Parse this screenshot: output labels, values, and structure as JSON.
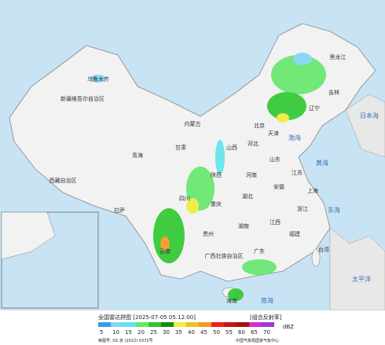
{
  "header": {
    "title": "全国雷达拼图 [2025-07-05 05:12:00]",
    "product": "[组合反射率]",
    "unit": "dBZ",
    "approval": "审图号: GS 京 (2022) 0372号",
    "agency": "中国气象局国家气象中心"
  },
  "legend": [
    {
      "value": 5,
      "color": "#3d9be8"
    },
    {
      "value": 10,
      "color": "#7fd6f2"
    },
    {
      "value": 15,
      "color": "#5fe3ee"
    },
    {
      "value": 20,
      "color": "#64e86a"
    },
    {
      "value": 25,
      "color": "#2dc82d"
    },
    {
      "value": 30,
      "color": "#168a16"
    },
    {
      "value": 35,
      "color": "#f0ec3c"
    },
    {
      "value": 40,
      "color": "#e6c21e"
    },
    {
      "value": 45,
      "color": "#f29a1e"
    },
    {
      "value": 50,
      "color": "#f01e1e"
    },
    {
      "value": 55,
      "color": "#c81414"
    },
    {
      "value": 60,
      "color": "#a01414"
    },
    {
      "value": 65,
      "color": "#d82ad8"
    },
    {
      "value": 70,
      "color": "#9a3ad8"
    }
  ],
  "labels": [
    "新疆维吾尔自治区",
    "西藏自治区",
    "青海",
    "内蒙古",
    "黑龙江",
    "吉林",
    "辽宁",
    "北京",
    "天津",
    "河北",
    "山西",
    "山东",
    "河南",
    "陕西",
    "甘肃",
    "四川",
    "重庆",
    "湖北",
    "安徽",
    "江苏",
    "上海",
    "浙江",
    "江西",
    "湖南",
    "贵州",
    "云南",
    "广西壮族自治区",
    "广东",
    "福建",
    "台湾",
    "海南",
    "乌鲁木齐",
    "拉萨",
    "渤海",
    "黄海",
    "东海",
    "南海",
    "太平洋",
    "日本海"
  ]
}
